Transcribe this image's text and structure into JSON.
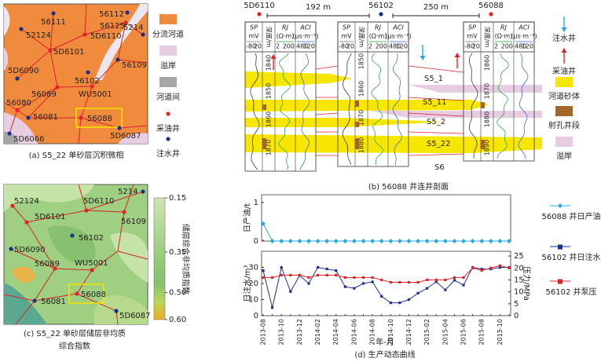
{
  "panel_a": {
    "caption": "(a) S5_22 单砂层沉积微相",
    "wells": [
      {
        "name": "56111",
        "marker": "injector"
      },
      {
        "name": "52124",
        "marker": "injector"
      },
      {
        "name": "56112",
        "marker": "injector"
      },
      {
        "name": "56125",
        "marker": "producer"
      },
      {
        "name": "5214",
        "marker": "injector"
      },
      {
        "name": "5D6110",
        "marker": "producer"
      },
      {
        "name": "5D6101",
        "marker": "producer"
      },
      {
        "name": "56109",
        "marker": "injector"
      },
      {
        "name": "5D6090",
        "marker": "injector"
      },
      {
        "name": "56102",
        "marker": "injector"
      },
      {
        "name": "WU5001",
        "marker": "producer"
      },
      {
        "name": "56089",
        "marker": "producer"
      },
      {
        "name": "56080",
        "marker": "producer"
      },
      {
        "name": "56081",
        "marker": "injector"
      },
      {
        "name": "56088",
        "marker": "producer"
      },
      {
        "name": "5D6087",
        "marker": "injector"
      },
      {
        "name": "5D6066",
        "marker": "injector"
      }
    ],
    "legend": [
      {
        "label": "分流河道",
        "color": "#f08a3c"
      },
      {
        "label": "溢岸",
        "color": "#e6cde2"
      },
      {
        "label": "河道间",
        "color": "#a6a6a6"
      },
      {
        "label": "采油井",
        "marker": "producer"
      },
      {
        "label": "注水井",
        "marker": "injector"
      }
    ]
  },
  "panel_b": {
    "caption": "(b) 56088 井连井剖面",
    "wells": [
      {
        "name": "5D6110",
        "marker": "producer",
        "depths": [
          1840,
          1850,
          1860,
          1870
        ]
      },
      {
        "name": "56102",
        "marker": "injector",
        "depths": [
          1850,
          1860,
          1870,
          1880
        ]
      },
      {
        "name": "56088",
        "marker": "producer",
        "depths": [
          1860,
          1870,
          1880,
          1890
        ]
      }
    ],
    "spacings": [
      "192 m",
      "250 m"
    ],
    "log_header": {
      "sp": "SP",
      "sp_unit": "mV",
      "depth": "深度/m",
      "rt": "RJ",
      "rt_unit": "(Ω·m)",
      "ac": "ACI",
      "ac_unit": "(μs·m⁻¹)",
      "sp_scale": [
        -80,
        20
      ],
      "rt_scale": [
        2,
        200
      ],
      "ac_scale": [
        480,
        120
      ]
    },
    "layers": [
      "S5_1",
      "S5_11",
      "S5_2",
      "S5_22",
      "S6"
    ],
    "legend": [
      {
        "label": "注水井",
        "marker": "injector"
      },
      {
        "label": "采油井",
        "marker": "producer"
      },
      {
        "label": "河道砂体",
        "color": "#f7e600"
      },
      {
        "label": "射孔井段",
        "color": "#b8732e"
      },
      {
        "label": "溢岸",
        "color": "#e6cde2"
      }
    ]
  },
  "panel_c": {
    "caption": [
      "(c) S5_22 单砂层储层非均质",
      "综合指数"
    ],
    "wells": [
      {
        "name": "5214",
        "marker": "injector"
      },
      {
        "name": "52124",
        "marker": "producer"
      },
      {
        "name": "5D6110",
        "marker": "producer"
      },
      {
        "name": "5D6101",
        "marker": "producer"
      },
      {
        "name": "56109",
        "marker": "producer"
      },
      {
        "name": "56102",
        "marker": "injector"
      },
      {
        "name": "5D6090",
        "marker": "injector"
      },
      {
        "name": "56089",
        "marker": "producer"
      },
      {
        "name": "WU5001",
        "marker": "producer"
      },
      {
        "name": "56081",
        "marker": "injector"
      },
      {
        "name": "56088",
        "marker": "producer"
      },
      {
        "name": "5D6087",
        "marker": "injector"
      }
    ],
    "colorbar": {
      "label": "储层综合非均质指数",
      "lim": [
        0.15,
        0.6
      ],
      "ticks": [
        0.15,
        0.35,
        {
          "value": 0.5,
          "label": "0.50"
        },
        {
          "value": 0.6,
          "label": "0.60"
        }
      ]
    }
  },
  "panel_d_caption": "(d) 生产动态曲线",
  "chart_data": [
    {
      "type": "line",
      "ylabel": "日产油/t",
      "ylim": [
        0,
        1.2
      ],
      "yticks": [
        0,
        1
      ],
      "series": [
        {
          "name": "56088 井日产油",
          "color": "#29a8e0",
          "marker": "diamond",
          "values": [
            0.45,
            0,
            0,
            0,
            0,
            0,
            0,
            0,
            0,
            0,
            0,
            0,
            0,
            0,
            0,
            0,
            0,
            0,
            0,
            0,
            0,
            0,
            0,
            0,
            0,
            0,
            0,
            0
          ]
        }
      ]
    },
    {
      "type": "line",
      "xlabel": "年-月",
      "ylabel": "日注水/m³",
      "y2label": "压力/MPa",
      "categories": [
        "2013-08",
        null,
        "2013-10",
        null,
        "2013-12",
        null,
        "2014-02",
        null,
        "2014-04",
        null,
        "2014-06",
        null,
        "2014-08",
        null,
        "2014-10",
        null,
        "2014-12",
        null,
        "2015-02",
        null,
        "2015-04",
        null,
        "2015-06",
        null,
        "2015-08",
        null,
        "2015-10",
        null
      ],
      "ylim": [
        0,
        40
      ],
      "yticks": [
        0,
        10,
        20,
        30
      ],
      "y2lim": [
        0,
        27
      ],
      "y2ticks": [
        0,
        5,
        10,
        15,
        20,
        25
      ],
      "series": [
        {
          "name": "56102 井日注水",
          "color": "#1f2f8f",
          "marker": "square",
          "values": [
            28,
            5,
            30,
            15,
            25,
            20,
            30,
            29,
            28,
            18,
            17,
            20,
            21,
            12,
            8,
            8,
            10,
            14,
            17,
            21,
            16,
            22,
            19,
            30,
            29,
            29,
            30,
            30
          ]
        },
        {
          "name": "56102 井泵压",
          "color": "#d9262a",
          "marker": "square",
          "axis": "y2",
          "values": [
            16,
            16,
            17,
            17,
            17,
            16,
            17,
            17,
            17,
            16,
            16,
            16,
            16,
            15,
            14,
            14,
            14,
            14,
            15,
            15,
            15,
            16,
            16,
            20,
            19,
            20,
            21,
            20
          ]
        }
      ]
    }
  ]
}
